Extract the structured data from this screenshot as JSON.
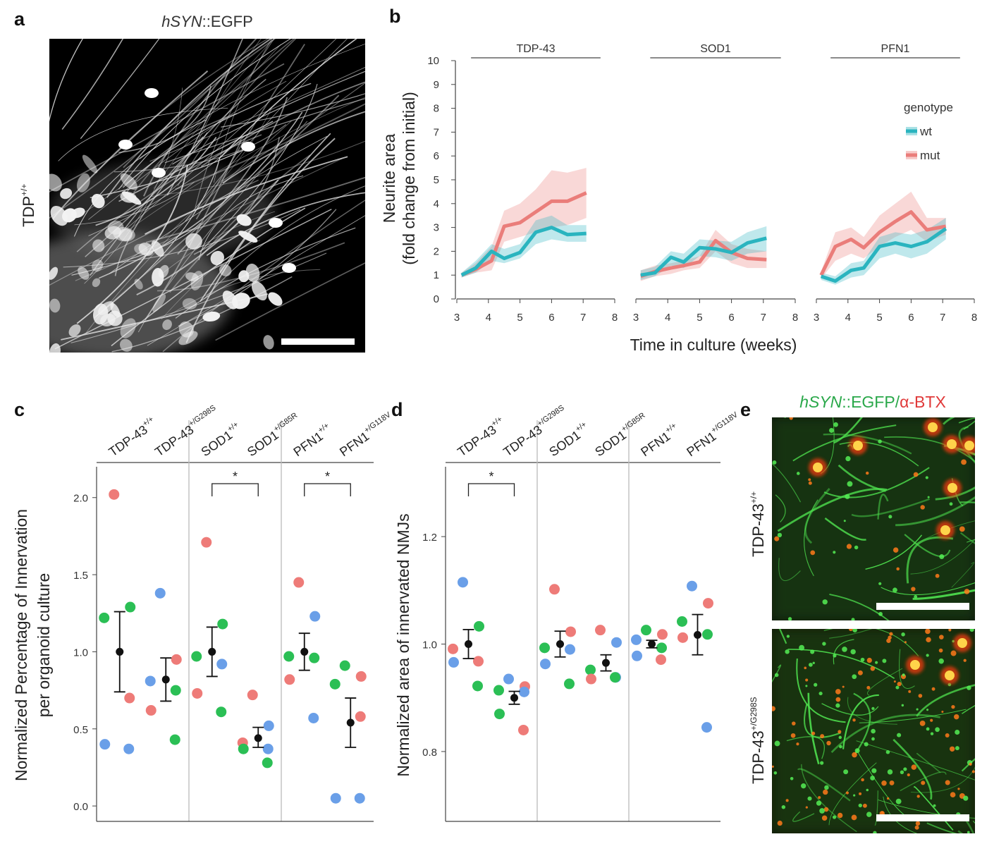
{
  "panels": {
    "a": {
      "label": "a",
      "title_italic": "hSYN",
      "title_rest": "::EGFP",
      "row_label_base": "TDP",
      "row_label_sup": "+/+"
    },
    "b": {
      "label": "b",
      "ylabel_line1": "Neurite area",
      "ylabel_line2": "(fold change from initial)",
      "xlabel": "Time in culture (weeks)",
      "legend_title": "genotype",
      "colors": {
        "wt": "#2ab4bf",
        "mut": "#ea7d7a"
      },
      "yticks": [
        0,
        1,
        2,
        3,
        4,
        5,
        6,
        7,
        8,
        9,
        10
      ],
      "xticks": [
        3,
        4,
        5,
        6,
        7,
        8
      ]
    },
    "c": {
      "label": "c",
      "ylabel_line1": "Normalized Percentage of Innervation",
      "ylabel_line2": "per organoid culture",
      "yticks": [
        "0.0",
        "0.5",
        "1.0",
        "1.5",
        "2.0"
      ],
      "star": "*"
    },
    "d": {
      "label": "d",
      "ylabel": "Normalized area of innervated NMJs",
      "yticks": [
        "0.8",
        "1.0",
        "1.2"
      ],
      "star": "*"
    },
    "e": {
      "label": "e",
      "title_italic": "hSYN",
      "title_mid": "::EGFP/",
      "title_red": "α-BTX",
      "row1_base": "TDP-43",
      "row1_sup": "+/+",
      "row2_base": "TDP-43",
      "row2_sup": "+/G298S"
    }
  },
  "columns": [
    {
      "base": "TDP-43",
      "sup": "+/+"
    },
    {
      "base": "TDP-43",
      "sup": "+/G298S"
    },
    {
      "base": "SOD1",
      "sup": "+/+"
    },
    {
      "base": "SOD1",
      "sup": "+/G85R"
    },
    {
      "base": "PFN1",
      "sup": "+/+"
    },
    {
      "base": "PFN1",
      "sup": "+/G118V"
    }
  ],
  "point_colors": {
    "r": "#ee7b78",
    "g": "#2bbf55",
    "b": "#6a9fe8"
  },
  "chart_data": [
    {
      "panel": "b",
      "type": "line",
      "xlabel": "Time in culture (weeks)",
      "ylabel": "Neurite area (fold change from initial)",
      "xlim": [
        3,
        8
      ],
      "ylim": [
        0,
        10
      ],
      "legend": {
        "title": "genotype",
        "entries": [
          "wt",
          "mut"
        ],
        "placement": "top-right"
      },
      "facets": [
        {
          "title": "TDP-43",
          "series": [
            {
              "name": "wt",
              "x": [
                3.15,
                3.6,
                4.1,
                4.5,
                5.0,
                5.5,
                6.0,
                6.5,
                7.1
              ],
              "y": [
                1.0,
                1.3,
                2.0,
                1.7,
                1.95,
                2.8,
                3.0,
                2.7,
                2.75
              ],
              "lo": [
                0.9,
                1.1,
                1.6,
                1.5,
                1.7,
                2.3,
                2.5,
                2.4,
                2.4
              ],
              "hi": [
                1.1,
                1.6,
                2.3,
                2.1,
                2.3,
                3.3,
                3.5,
                3.1,
                3.1
              ]
            },
            {
              "name": "mut",
              "x": [
                3.15,
                3.6,
                4.1,
                4.5,
                5.0,
                5.5,
                6.0,
                6.5,
                7.1
              ],
              "y": [
                1.0,
                1.25,
                1.6,
                3.05,
                3.2,
                3.65,
                4.1,
                4.1,
                4.45
              ],
              "lo": [
                0.9,
                1.1,
                1.2,
                2.4,
                2.6,
                2.8,
                3.0,
                3.1,
                3.4
              ],
              "hi": [
                1.1,
                1.5,
                2.2,
                3.7,
                4.0,
                4.6,
                5.4,
                5.3,
                5.5
              ]
            }
          ]
        },
        {
          "title": "SOD1",
          "series": [
            {
              "name": "wt",
              "x": [
                3.15,
                3.6,
                4.1,
                4.5,
                5.0,
                5.5,
                6.0,
                6.5,
                7.1
              ],
              "y": [
                1.0,
                1.1,
                1.75,
                1.55,
                2.15,
                2.1,
                1.95,
                2.35,
                2.55
              ],
              "lo": [
                0.8,
                0.95,
                1.4,
                1.3,
                1.8,
                1.75,
                1.6,
                1.9,
                2.0
              ],
              "hi": [
                1.2,
                1.35,
                2.0,
                1.9,
                2.5,
                2.45,
                2.4,
                2.8,
                3.05
              ]
            },
            {
              "name": "mut",
              "x": [
                3.15,
                3.6,
                4.1,
                4.5,
                5.0,
                5.5,
                6.0,
                6.5,
                7.1
              ],
              "y": [
                0.95,
                1.15,
                1.3,
                1.4,
                1.55,
                2.45,
                1.95,
                1.7,
                1.65
              ],
              "lo": [
                0.75,
                0.95,
                1.05,
                1.2,
                1.3,
                2.0,
                1.5,
                1.3,
                1.3
              ],
              "hi": [
                1.2,
                1.4,
                1.5,
                1.6,
                1.8,
                2.9,
                2.3,
                2.1,
                2.0
              ]
            }
          ]
        },
        {
          "title": "PFN1",
          "series": [
            {
              "name": "wt",
              "x": [
                3.15,
                3.6,
                4.1,
                4.5,
                5.0,
                5.5,
                6.0,
                6.5,
                7.1
              ],
              "y": [
                0.95,
                0.75,
                1.2,
                1.3,
                2.2,
                2.35,
                2.2,
                2.4,
                2.95
              ],
              "lo": [
                0.8,
                0.6,
                0.9,
                1.0,
                1.7,
                1.9,
                1.7,
                1.9,
                2.5
              ],
              "hi": [
                1.1,
                0.95,
                1.5,
                1.6,
                2.6,
                2.8,
                2.7,
                2.9,
                3.4
              ]
            },
            {
              "name": "mut",
              "x": [
                3.15,
                3.6,
                4.1,
                4.5,
                5.0,
                5.5,
                6.0,
                6.5,
                7.1
              ],
              "y": [
                1.0,
                2.2,
                2.5,
                2.15,
                2.8,
                3.25,
                3.65,
                2.9,
                3.05
              ],
              "lo": [
                0.85,
                1.6,
                1.9,
                1.7,
                2.2,
                2.6,
                2.9,
                2.4,
                2.7
              ],
              "hi": [
                1.15,
                2.8,
                3.0,
                2.6,
                3.5,
                4.0,
                4.5,
                3.4,
                3.4
              ]
            }
          ]
        }
      ]
    },
    {
      "panel": "c",
      "type": "scatter",
      "ylabel": "Normalized Percentage of Innervation per organoid culture",
      "ylim": [
        -0.1,
        2.2
      ],
      "groups": [
        {
          "name": "TDP-43+/+",
          "mean": 1.0,
          "err": [
            0.74,
            1.26
          ],
          "points": [
            [
              2.02,
              "r"
            ],
            [
              1.29,
              "g"
            ],
            [
              1.22,
              "g"
            ],
            [
              0.7,
              "r"
            ],
            [
              0.4,
              "b"
            ],
            [
              0.37,
              "b"
            ]
          ]
        },
        {
          "name": "TDP-43+/G298S",
          "mean": 0.82,
          "err": [
            0.68,
            0.96
          ],
          "points": [
            [
              1.38,
              "b"
            ],
            [
              0.95,
              "r"
            ],
            [
              0.81,
              "b"
            ],
            [
              0.75,
              "g"
            ],
            [
              0.62,
              "r"
            ],
            [
              0.43,
              "g"
            ]
          ]
        },
        {
          "name": "SOD1+/+",
          "mean": 1.0,
          "err": [
            0.84,
            1.16
          ],
          "points": [
            [
              1.71,
              "r"
            ],
            [
              1.18,
              "g"
            ],
            [
              0.97,
              "g"
            ],
            [
              0.92,
              "b"
            ],
            [
              0.73,
              "r"
            ],
            [
              0.61,
              "g"
            ]
          ]
        },
        {
          "name": "SOD1+/G85R",
          "mean": 0.44,
          "err": [
            0.38,
            0.51
          ],
          "points": [
            [
              0.72,
              "r"
            ],
            [
              0.52,
              "b"
            ],
            [
              0.41,
              "r"
            ],
            [
              0.37,
              "b"
            ],
            [
              0.37,
              "g"
            ],
            [
              0.28,
              "g"
            ]
          ]
        },
        {
          "name": "PFN1+/+",
          "mean": 1.0,
          "err": [
            0.88,
            1.12
          ],
          "points": [
            [
              1.45,
              "r"
            ],
            [
              1.23,
              "b"
            ],
            [
              0.97,
              "g"
            ],
            [
              0.96,
              "g"
            ],
            [
              0.82,
              "r"
            ],
            [
              0.57,
              "b"
            ]
          ]
        },
        {
          "name": "PFN1+/G118V",
          "mean": 0.54,
          "err": [
            0.38,
            0.7
          ],
          "points": [
            [
              0.91,
              "g"
            ],
            [
              0.84,
              "r"
            ],
            [
              0.79,
              "g"
            ],
            [
              0.58,
              "r"
            ],
            [
              0.05,
              "b"
            ],
            [
              0.05,
              "b"
            ]
          ]
        }
      ],
      "significance": [
        {
          "groups": [
            2,
            3
          ],
          "label": "*"
        },
        {
          "groups": [
            4,
            5
          ],
          "label": "*"
        }
      ]
    },
    {
      "panel": "d",
      "type": "scatter",
      "ylabel": "Normalized area of innervated NMJs",
      "ylim": [
        0.67,
        1.33
      ],
      "groups": [
        {
          "name": "TDP-43+/+",
          "mean": 1.0,
          "err": [
            0.973,
            1.027
          ],
          "points": [
            [
              1.115,
              "b"
            ],
            [
              1.033,
              "g"
            ],
            [
              0.991,
              "r"
            ],
            [
              0.968,
              "r"
            ],
            [
              0.966,
              "b"
            ],
            [
              0.922,
              "g"
            ]
          ]
        },
        {
          "name": "TDP-43+/G298S",
          "mean": 0.9,
          "err": [
            0.888,
            0.912
          ],
          "points": [
            [
              0.935,
              "b"
            ],
            [
              0.921,
              "r"
            ],
            [
              0.914,
              "g"
            ],
            [
              0.911,
              "b"
            ],
            [
              0.87,
              "g"
            ],
            [
              0.84,
              "r"
            ]
          ]
        },
        {
          "name": "SOD1+/+",
          "mean": 1.0,
          "err": [
            0.976,
            1.024
          ],
          "points": [
            [
              1.102,
              "r"
            ],
            [
              1.023,
              "r"
            ],
            [
              0.993,
              "g"
            ],
            [
              0.99,
              "b"
            ],
            [
              0.963,
              "b"
            ],
            [
              0.926,
              "g"
            ]
          ]
        },
        {
          "name": "SOD1+/G85R",
          "mean": 0.965,
          "err": [
            0.95,
            0.98
          ],
          "points": [
            [
              1.026,
              "r"
            ],
            [
              1.003,
              "b"
            ],
            [
              0.952,
              "g"
            ],
            [
              0.938,
              "b"
            ],
            [
              0.935,
              "r"
            ],
            [
              0.938,
              "g"
            ]
          ]
        },
        {
          "name": "PFN1+/+",
          "mean": 1.0,
          "err": [
            0.993,
            1.007
          ],
          "points": [
            [
              1.026,
              "g"
            ],
            [
              1.018,
              "r"
            ],
            [
              1.008,
              "b"
            ],
            [
              0.993,
              "g"
            ],
            [
              0.978,
              "b"
            ],
            [
              0.971,
              "r"
            ]
          ]
        },
        {
          "name": "PFN1+/G118V",
          "mean": 1.017,
          "err": [
            0.98,
            1.055
          ],
          "points": [
            [
              1.108,
              "b"
            ],
            [
              1.076,
              "r"
            ],
            [
              1.042,
              "g"
            ],
            [
              1.018,
              "g"
            ],
            [
              1.012,
              "r"
            ],
            [
              0.845,
              "b"
            ]
          ]
        }
      ],
      "significance": [
        {
          "groups": [
            0,
            1
          ],
          "label": "*"
        }
      ]
    }
  ]
}
